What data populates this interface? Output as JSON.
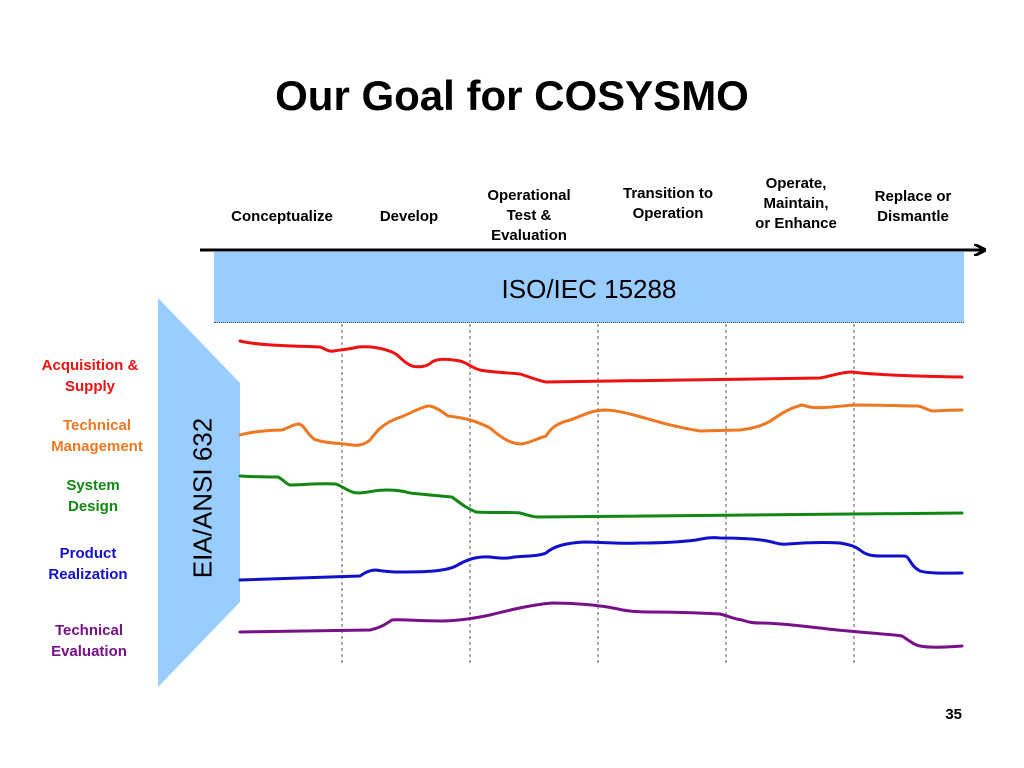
{
  "title": "Our Goal for COSYSMO",
  "phases": [
    {
      "label": "Conceptualize"
    },
    {
      "label": "Develop"
    },
    {
      "label": "Operational\nTest &\nEvaluation"
    },
    {
      "label": "Transition to\nOperation"
    },
    {
      "label": "Operate,\nMaintain,\nor Enhance"
    },
    {
      "label": "Replace or\nDismantle"
    }
  ],
  "standard_top": "ISO/IEC 15288",
  "standard_side": "EIA/ANSI 632",
  "processes": [
    {
      "label": "Acquisition &\nSupply",
      "color": "#ee1111"
    },
    {
      "label": "Technical\nManagement",
      "color": "#ee7722"
    },
    {
      "label": "System\nDesign",
      "color": "#118811"
    },
    {
      "label": "Product\nRealization",
      "color": "#1111cc"
    },
    {
      "label": "Technical\nEvaluation",
      "color": "#771188"
    }
  ],
  "colors": {
    "standard_fill": "#99ccff",
    "divider": "#555555",
    "arrow": "#000000"
  },
  "page_number": "35"
}
